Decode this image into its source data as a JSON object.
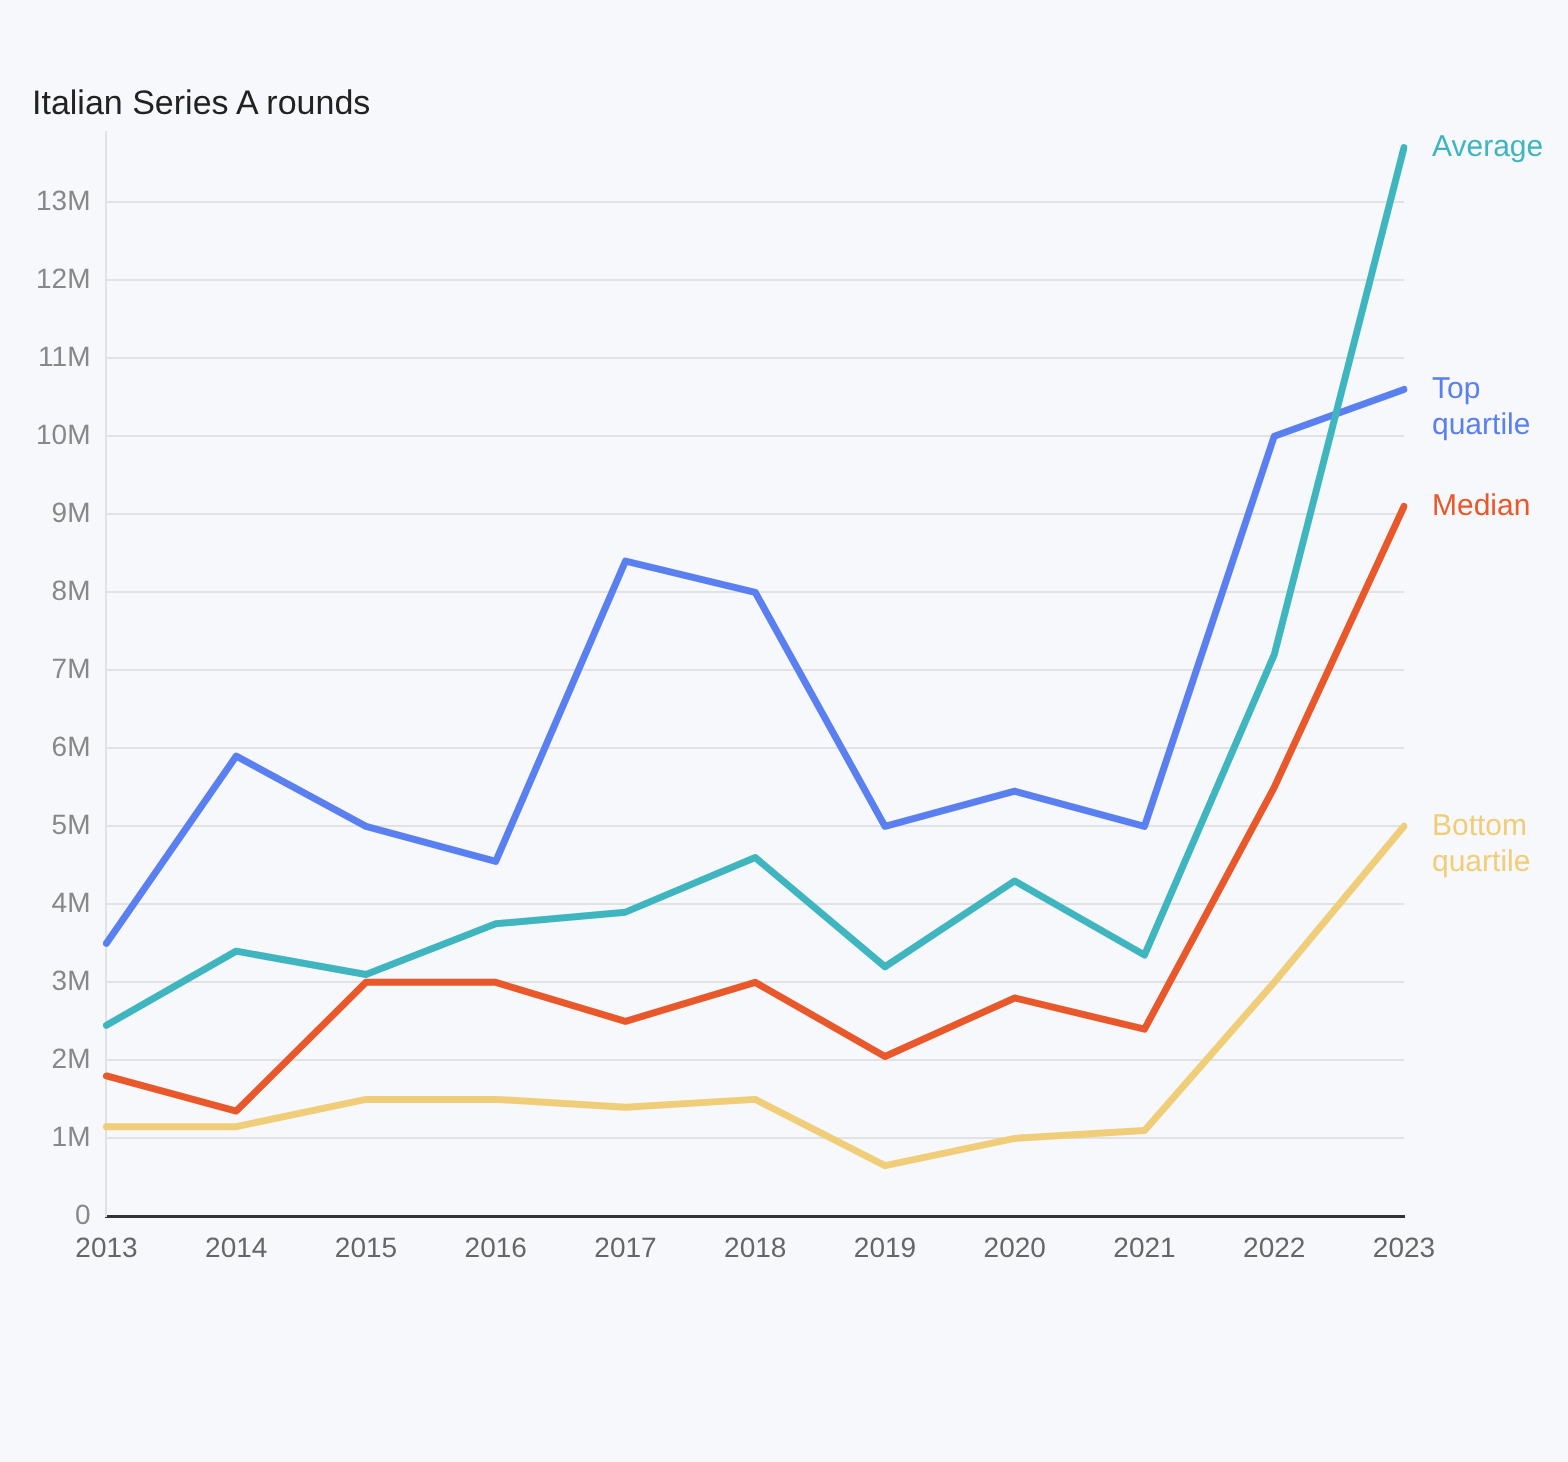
{
  "chart_data": {
    "type": "line",
    "title": "Italian Series A rounds",
    "categories": [
      "2013",
      "2014",
      "2015",
      "2016",
      "2017",
      "2018",
      "2019",
      "2020",
      "2021",
      "2022",
      "2023"
    ],
    "series": [
      {
        "name": "Average",
        "color": "#3fb5bf",
        "values": [
          2.45,
          3.4,
          3.1,
          3.75,
          3.9,
          4.6,
          3.2,
          4.3,
          3.35,
          7.2,
          13.7
        ]
      },
      {
        "name": "Top quartile",
        "color": "#5a7ff0",
        "values": [
          3.5,
          5.9,
          5.0,
          4.55,
          8.4,
          8.0,
          5.0,
          5.45,
          5.0,
          10.0,
          10.6
        ]
      },
      {
        "name": "Median",
        "color": "#e8582a",
        "values": [
          1.8,
          1.35,
          3.0,
          3.0,
          2.5,
          3.0,
          2.05,
          2.8,
          2.4,
          5.5,
          9.1
        ]
      },
      {
        "name": "Bottom quartile",
        "color": "#f0cd78",
        "values": [
          1.15,
          1.15,
          1.5,
          1.5,
          1.4,
          1.5,
          0.65,
          1.0,
          1.1,
          3.0,
          5.0
        ]
      }
    ],
    "ylim": [
      0,
      13.9
    ],
    "yticks": [
      0,
      {
        "value": 1,
        "label": "1M"
      },
      {
        "value": 2,
        "label": "2M"
      },
      {
        "value": 3,
        "label": "3M"
      },
      {
        "value": 4,
        "label": "4M"
      },
      {
        "value": 5,
        "label": "5M"
      },
      {
        "value": 6,
        "label": "6M"
      },
      {
        "value": 7,
        "label": "7M"
      },
      {
        "value": 8,
        "label": "8M"
      },
      {
        "value": 9,
        "label": "9M"
      },
      {
        "value": 10,
        "label": "10M"
      },
      {
        "value": 11,
        "label": "11M"
      },
      {
        "value": 12,
        "label": "12M"
      },
      {
        "value": 13,
        "label": "13M"
      }
    ],
    "grid": "y",
    "legend": false,
    "marker": "none",
    "line_style": "solid"
  }
}
